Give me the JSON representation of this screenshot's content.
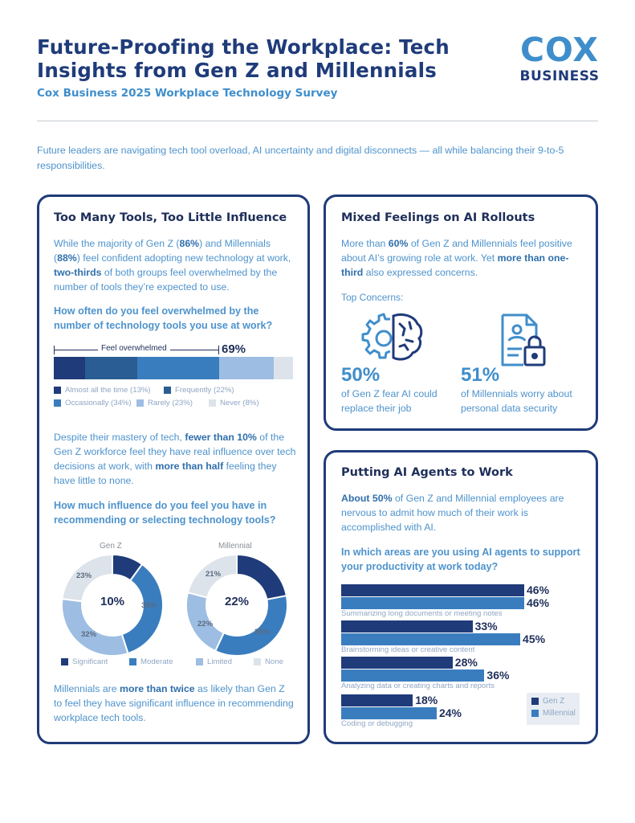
{
  "header": {
    "title": "Future-Proofing the Workplace: Tech Insights from Gen Z and Millennials",
    "subtitle": "Cox Business 2025 Workplace Technology Survey",
    "logo_top": "COX",
    "logo_bottom": "BUSINESS"
  },
  "intro": "Future leaders are navigating tech tool overload, AI uncertainty and digital disconnects — all while balancing their 9-to-5 responsibilities.",
  "card_tools": {
    "heading": "Too Many Tools, Too Little Influence",
    "para1_parts": [
      "While the majority of Gen Z (",
      "86%",
      ") and Millennials (",
      "88%",
      ") feel confident adopting new technology at work, ",
      "two-thirds",
      " of both groups feel overwhelmed by the number of tools they’re expected to use."
    ],
    "question1": "How often do you feel overwhelmed by the number of technology tools you use at work?",
    "overwhelmed_label": "Feel overwhelmed",
    "overwhelmed_pct": "69%",
    "para2_parts": [
      "Despite their mastery of tech, ",
      "fewer than 10%",
      " of the Gen Z workforce feel they have real influence over tech decisions at work, with ",
      "more than half",
      " feeling they have little to none."
    ],
    "question2": "How much influence do you feel you have in recommending or selecting technology tools?",
    "para3_parts": [
      "Millennials are ",
      "more than twice",
      " as likely than Gen Z to feel they have significant influence in recommending workplace tech tools."
    ]
  },
  "card_ai": {
    "heading": "Mixed Feelings on AI Rollouts",
    "para_parts": [
      "More than ",
      "60%",
      " of Gen Z and Millennials feel positive about AI’s growing role at work. Yet ",
      "more than one-third",
      " also expressed concerns."
    ],
    "top_concerns": "Top Concerns:",
    "stat1_value": "50%",
    "stat1_text": "of Gen Z fear AI could replace their job",
    "stat2_value": "51%",
    "stat2_text": "of Millennials worry about personal data security"
  },
  "card_agents": {
    "heading": "Putting AI Agents to Work",
    "para_parts": [
      "About 50%",
      " of Gen Z and Millennial employees are nervous to admit how much of their work is accomplished with AI."
    ],
    "question": "In which areas are you using AI agents to support your productivity at work today?"
  },
  "colors": {
    "navy": "#1f3b7a",
    "almost_all": "#1f3b7a",
    "frequently": "#2a5d94",
    "occasionally": "#3a7dbf",
    "rarely": "#9dbde2",
    "never": "#dde3ea"
  },
  "chart_data": [
    {
      "type": "bar",
      "stacked": true,
      "question": "How often do you feel overwhelmed by the number of technology tools you use at work?",
      "series": [
        {
          "name": "Almost all the time (13%)",
          "value": 13,
          "color": "#1f3b7a"
        },
        {
          "name": "Frequently (22%)",
          "value": 22,
          "color": "#2a5d94"
        },
        {
          "name": "Occasionally (34%)",
          "value": 34,
          "color": "#3a7dbf"
        },
        {
          "name": "Rarely (23%)",
          "value": 23,
          "color": "#9dbde2"
        },
        {
          "name": "Never (8%)",
          "value": 8,
          "color": "#dde3ea"
        }
      ]
    },
    {
      "type": "pie",
      "donut": true,
      "charts": [
        {
          "name": "Gen Z",
          "center": "10%",
          "values": [
            10,
            35,
            32,
            23
          ],
          "labels": [
            "",
            "35%",
            "32%",
            "23%"
          ]
        },
        {
          "name": "Millennial",
          "center": "22%",
          "values": [
            22,
            35,
            22,
            21
          ],
          "labels": [
            "",
            "35%",
            "22%",
            "21%"
          ]
        }
      ],
      "categories": [
        "Significant",
        "Moderate",
        "Limited",
        "None"
      ],
      "colors": [
        "#1f3b7a",
        "#3a7dbf",
        "#9dbde2",
        "#dde3ea"
      ]
    },
    {
      "type": "bar",
      "orientation": "horizontal",
      "question": "In which areas are you using AI agents to support your productivity at work today?",
      "categories": [
        "Summarizing long documents or meeting notes",
        "Brainstorming ideas or creative content",
        "Analyzing data or creating charts and reports",
        "Coding or debugging"
      ],
      "series": [
        {
          "name": "Gen Z",
          "values": [
            46,
            33,
            28,
            18
          ],
          "labels": [
            "46%",
            "33%",
            "28%",
            "18%"
          ],
          "color": "#1f3b7a"
        },
        {
          "name": "Millennial",
          "values": [
            46,
            45,
            36,
            24
          ],
          "labels": [
            "46%",
            "45%",
            "36%",
            "24%"
          ],
          "color": "#3a7dbf"
        }
      ]
    }
  ]
}
